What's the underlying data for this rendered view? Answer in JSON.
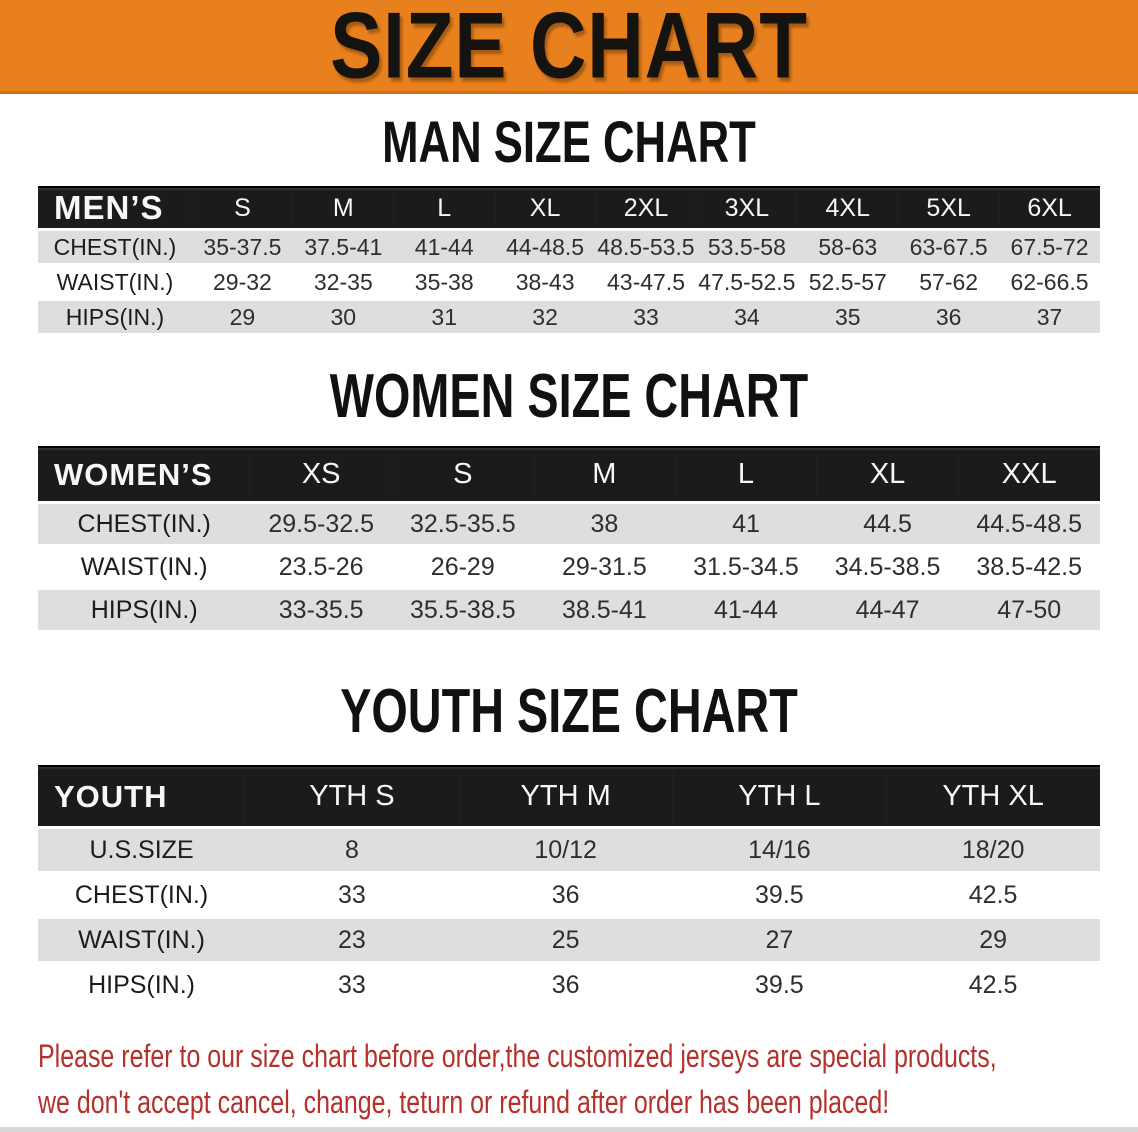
{
  "banner": {
    "title": "SIZE CHART",
    "bg_color": "#E8801E",
    "text_color": "#151310"
  },
  "colors": {
    "table_header_bg": "#1B1B1B",
    "table_header_text": "#F7F7F7",
    "stripe_row_bg": "#DEDEDE",
    "disclaimer_text": "#B5312C"
  },
  "sections": [
    {
      "heading": "MAN SIZE CHART",
      "table": {
        "header_label": "MEN’S",
        "columns": [
          "S",
          "M",
          "L",
          "XL",
          "2XL",
          "3XL",
          "4XL",
          "5XL",
          "6XL"
        ],
        "rows": [
          {
            "label": "CHEST(IN.)",
            "values": [
              "35-37.5",
              "37.5-41",
              "41-44",
              "44-48.5",
              "48.5-53.5",
              "53.5-58",
              "58-63",
              "63-67.5",
              "67.5-72"
            ]
          },
          {
            "label": "WAIST(IN.)",
            "values": [
              "29-32",
              "32-35",
              "35-38",
              "38-43",
              "43-47.5",
              "47.5-52.5",
              "52.5-57",
              "57-62",
              "62-66.5"
            ]
          },
          {
            "label": "HIPS(IN.)",
            "values": [
              "29",
              "30",
              "31",
              "32",
              "33",
              "34",
              "35",
              "36",
              "37"
            ]
          }
        ]
      }
    },
    {
      "heading": "WOMEN SIZE CHART",
      "table": {
        "header_label": "WOMEN’S",
        "columns": [
          "XS",
          "S",
          "M",
          "L",
          "XL",
          "XXL"
        ],
        "rows": [
          {
            "label": "CHEST(IN.)",
            "values": [
              "29.5-32.5",
              "32.5-35.5",
              "38",
              "41",
              "44.5",
              "44.5-48.5"
            ]
          },
          {
            "label": "WAIST(IN.)",
            "values": [
              "23.5-26",
              "26-29",
              "29-31.5",
              "31.5-34.5",
              "34.5-38.5",
              "38.5-42.5"
            ]
          },
          {
            "label": "HIPS(IN.)",
            "values": [
              "33-35.5",
              "35.5-38.5",
              "38.5-41",
              "41-44",
              "44-47",
              "47-50"
            ]
          }
        ]
      }
    },
    {
      "heading": "YOUTH SIZE CHART",
      "table": {
        "header_label": "YOUTH",
        "columns": [
          "YTH S",
          "YTH M",
          "YTH L",
          "YTH XL"
        ],
        "rows": [
          {
            "label": "U.S.SIZE",
            "values": [
              "8",
              "10/12",
              "14/16",
              "18/20"
            ]
          },
          {
            "label": "CHEST(IN.)",
            "values": [
              "33",
              "36",
              "39.5",
              "42.5"
            ]
          },
          {
            "label": "WAIST(IN.)",
            "values": [
              "23",
              "25",
              "27",
              "29"
            ]
          },
          {
            "label": "HIPS(IN.)",
            "values": [
              "33",
              "36",
              "39.5",
              "42.5"
            ]
          }
        ]
      }
    }
  ],
  "disclaimer": {
    "lines": [
      "Please refer to our size chart before order,the customized jerseys are special products,",
      "we don't accept cancel, change, teturn or refund after order has been placed!"
    ]
  }
}
